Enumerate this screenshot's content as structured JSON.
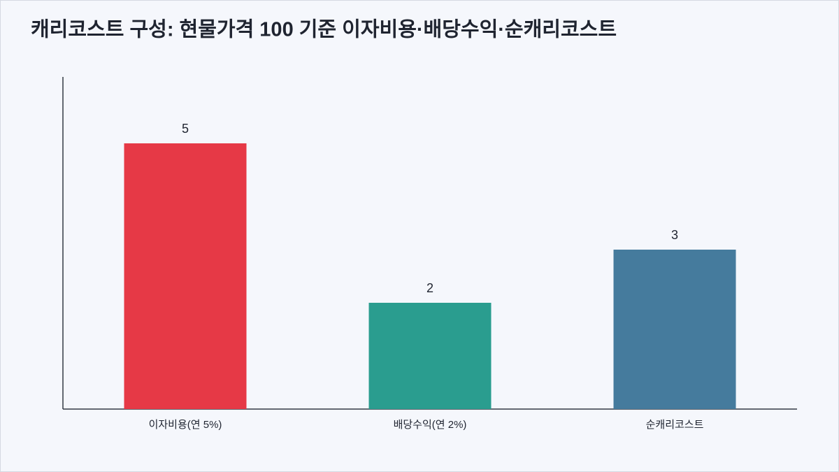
{
  "chart_data": {
    "type": "bar",
    "title": "캐리코스트 구성: 현물가격 100 기준 이자비용·배당수익·순캐리코스트",
    "categories": [
      "이자비용(연 5%)",
      "배당수익(연 2%)",
      "순캐리코스트"
    ],
    "values": [
      5,
      2,
      3
    ],
    "colors": [
      "#e63946",
      "#2a9d8f",
      "#457b9d"
    ],
    "ylim": [
      0,
      6.25
    ]
  }
}
